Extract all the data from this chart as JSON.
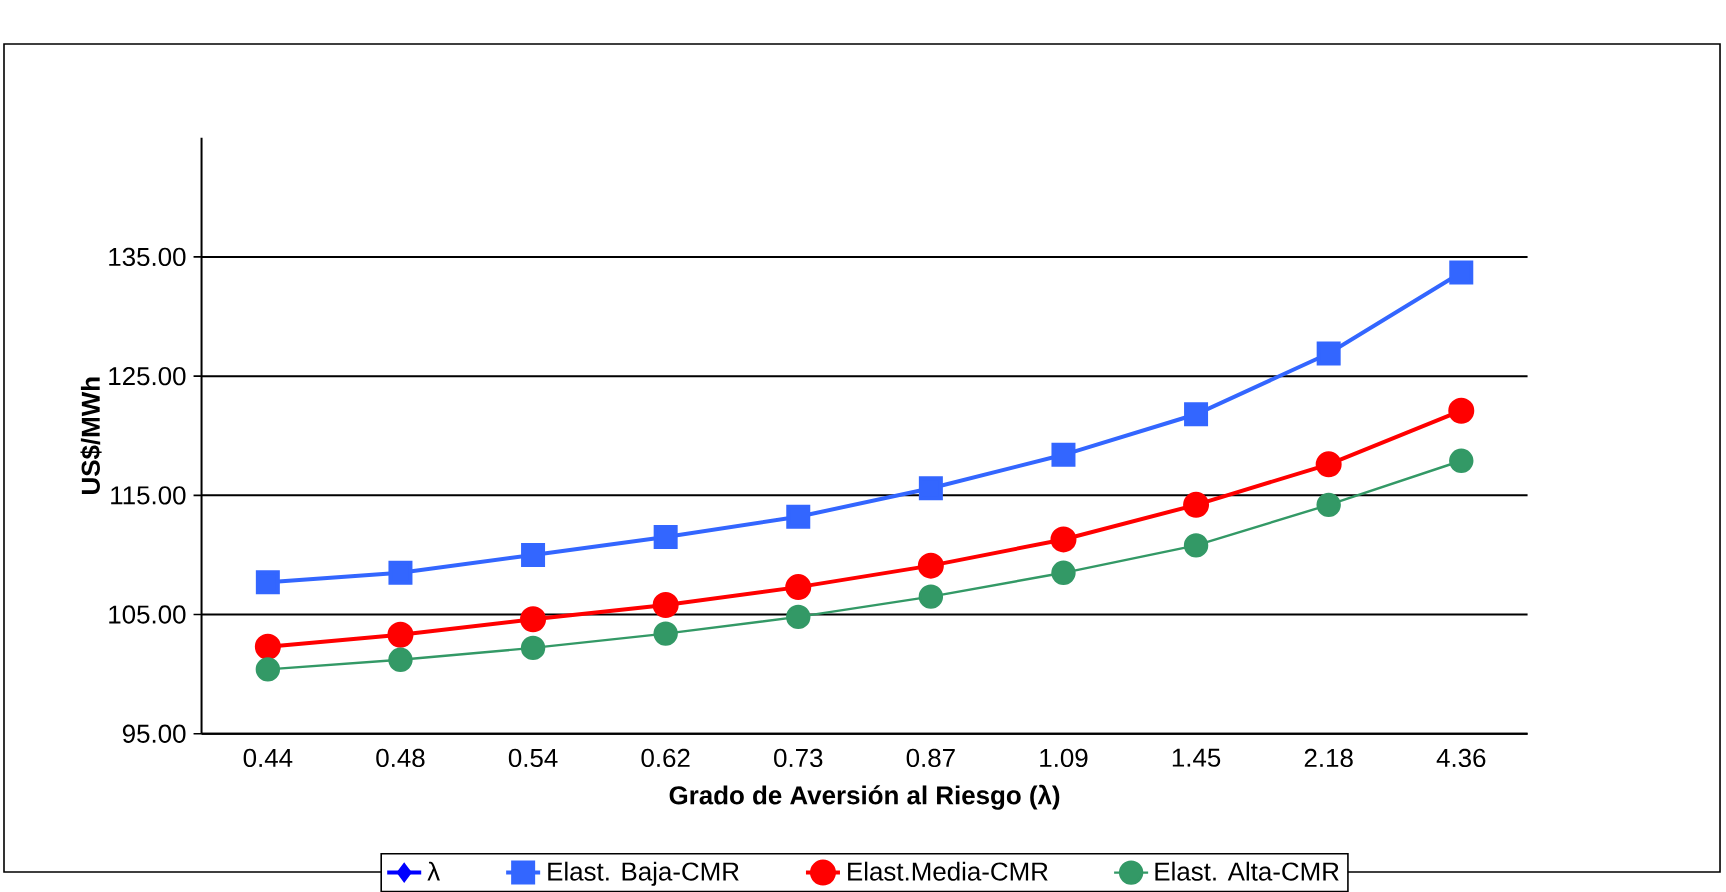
{
  "chart_data": {
    "type": "line",
    "xlabel": "Grado de Aversión al Riesgo (λ)",
    "ylabel": "US$/MWh",
    "categories": [
      "0.44",
      "0.48",
      "0.54",
      "0.62",
      "0.73",
      "0.87",
      "1.09",
      "1.45",
      "2.18",
      "4.36"
    ],
    "series": [
      {
        "name": "λ",
        "color": "#0000ff",
        "marker": "diamond",
        "values": [
          null,
          null,
          null,
          null,
          null,
          null,
          null,
          null,
          null,
          null
        ]
      },
      {
        "name": "Elast. Baja-CMR",
        "color": "#3366ff",
        "marker": "square",
        "values": [
          107.7,
          108.5,
          110.0,
          111.5,
          113.2,
          115.6,
          118.4,
          121.8,
          126.9,
          133.7
        ]
      },
      {
        "name": "Elast.Media-CMR",
        "color": "#ff0000",
        "marker": "circle",
        "values": [
          102.3,
          103.3,
          104.6,
          105.8,
          107.3,
          109.1,
          111.3,
          114.2,
          117.6,
          122.1
        ]
      },
      {
        "name": "Elast. Alta-CMR",
        "color": "#339966",
        "marker": "circle",
        "values": [
          100.4,
          101.2,
          102.2,
          103.4,
          104.8,
          106.5,
          108.5,
          110.8,
          114.2,
          117.9
        ]
      }
    ],
    "ylim": [
      95,
      145
    ],
    "yticks": [
      {
        "value": 95,
        "label": "95.00"
      },
      {
        "value": 105,
        "label": "105.00"
      },
      {
        "value": 115,
        "label": "115.00"
      },
      {
        "value": 125,
        "label": "125.00"
      },
      {
        "value": 135,
        "label": "135.00"
      }
    ],
    "grid": "y",
    "legend": "bottom"
  }
}
